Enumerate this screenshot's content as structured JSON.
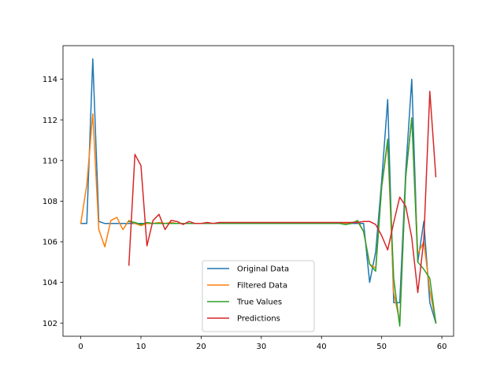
{
  "chart_data": {
    "type": "line",
    "title": "",
    "xlabel": "",
    "ylabel": "",
    "xlim": [
      -2.95,
      61.95
    ],
    "ylim": [
      101.35,
      115.65
    ],
    "xticks": [
      0,
      10,
      20,
      30,
      40,
      50,
      60
    ],
    "xtick_labels": [
      "0",
      "10",
      "20",
      "30",
      "40",
      "50",
      "60"
    ],
    "yticks": [
      102,
      104,
      106,
      108,
      110,
      112,
      114
    ],
    "ytick_labels": [
      "102",
      "104",
      "106",
      "108",
      "110",
      "112",
      "114"
    ],
    "grid": false,
    "legend_position": "lower-center",
    "series": [
      {
        "name": "Original Data",
        "color": "#1f77b4",
        "x": [
          0,
          1,
          2,
          3,
          4,
          5,
          6,
          7,
          8,
          9,
          10,
          11,
          12,
          13,
          14,
          15,
          16,
          17,
          18,
          19,
          20,
          21,
          22,
          23,
          24,
          25,
          26,
          27,
          28,
          29,
          30,
          31,
          32,
          33,
          34,
          35,
          36,
          37,
          38,
          39,
          40,
          41,
          42,
          43,
          44,
          45,
          46,
          47,
          48,
          49,
          50,
          51,
          52,
          53,
          54,
          55,
          56,
          57,
          58,
          59
        ],
        "values": [
          106.9,
          106.9,
          115.0,
          107.0,
          106.9,
          106.9,
          106.9,
          106.9,
          106.9,
          106.9,
          106.9,
          106.9,
          106.9,
          106.9,
          106.9,
          106.9,
          106.9,
          106.9,
          106.9,
          106.9,
          106.9,
          106.9,
          106.9,
          106.9,
          106.9,
          106.9,
          106.9,
          106.9,
          106.9,
          106.9,
          106.9,
          106.9,
          106.9,
          106.9,
          106.9,
          106.9,
          106.9,
          106.9,
          106.9,
          106.9,
          106.9,
          106.9,
          106.9,
          106.9,
          106.9,
          106.9,
          106.9,
          106.9,
          104.0,
          105.5,
          109.0,
          113.0,
          103.0,
          103.0,
          109.5,
          114.0,
          105.0,
          107.0,
          103.0,
          102.0
        ]
      },
      {
        "name": "Filtered Data",
        "color": "#ff7f0e",
        "x": [
          0,
          1,
          2,
          3,
          4,
          5,
          6,
          7,
          8,
          9,
          10,
          11,
          12,
          13,
          14,
          15,
          16,
          17,
          18,
          19,
          20,
          21,
          22,
          23,
          24,
          25,
          26,
          27,
          28,
          29,
          30,
          31,
          32,
          33,
          34,
          35,
          36,
          37,
          38,
          39,
          40,
          41,
          42,
          43,
          44,
          45,
          46,
          47,
          48,
          49,
          50,
          51,
          52,
          53,
          54,
          55,
          56,
          57,
          58,
          59
        ],
        "values": [
          106.9,
          108.8,
          112.3,
          106.6,
          105.75,
          107.05,
          107.2,
          106.6,
          107.05,
          106.9,
          106.8,
          106.9,
          106.9,
          106.95,
          106.9,
          106.95,
          106.9,
          106.9,
          106.9,
          106.9,
          106.9,
          106.9,
          106.9,
          106.9,
          106.9,
          106.9,
          106.9,
          106.9,
          106.9,
          106.9,
          106.9,
          106.9,
          106.9,
          106.9,
          106.9,
          106.9,
          106.9,
          106.9,
          106.9,
          106.9,
          106.9,
          106.9,
          106.9,
          106.9,
          106.9,
          106.95,
          107.0,
          106.5,
          104.9,
          104.7,
          108.7,
          110.9,
          103.5,
          102.05,
          109.2,
          112.1,
          105.4,
          106.0,
          103.6,
          102.05
        ]
      },
      {
        "name": "True Values",
        "color": "#2ca02c",
        "x": [
          8,
          9,
          10,
          11,
          12,
          13,
          14,
          15,
          16,
          17,
          18,
          19,
          20,
          21,
          22,
          23,
          24,
          25,
          26,
          27,
          28,
          29,
          30,
          31,
          32,
          33,
          34,
          35,
          36,
          37,
          38,
          39,
          40,
          41,
          42,
          43,
          44,
          45,
          46,
          47,
          48,
          49,
          50,
          51,
          52,
          53,
          54,
          55,
          56,
          57,
          58,
          59
        ],
        "values": [
          107.0,
          106.95,
          106.85,
          106.95,
          106.9,
          106.9,
          106.9,
          106.9,
          106.9,
          106.9,
          106.9,
          106.9,
          106.9,
          106.9,
          106.9,
          106.9,
          106.9,
          106.9,
          106.9,
          106.9,
          106.9,
          106.9,
          106.9,
          106.9,
          106.9,
          106.9,
          106.9,
          106.9,
          106.9,
          106.9,
          106.9,
          106.9,
          106.9,
          106.9,
          106.9,
          106.9,
          106.85,
          106.9,
          107.05,
          106.5,
          104.9,
          104.55,
          108.7,
          111.05,
          104.2,
          101.85,
          109.2,
          112.1,
          105.0,
          104.65,
          104.2,
          102.0
        ]
      },
      {
        "name": "Predictions",
        "color": "#d62728",
        "x": [
          8,
          9,
          10,
          11,
          12,
          13,
          14,
          15,
          16,
          17,
          18,
          19,
          20,
          21,
          22,
          23,
          24,
          25,
          26,
          27,
          28,
          29,
          30,
          31,
          32,
          33,
          34,
          35,
          36,
          37,
          38,
          39,
          40,
          41,
          42,
          43,
          44,
          45,
          46,
          47,
          48,
          49,
          50,
          51,
          52,
          53,
          54,
          55,
          56,
          57,
          58,
          59
        ],
        "values": [
          104.85,
          110.3,
          109.75,
          105.8,
          107.05,
          107.35,
          106.6,
          107.05,
          107.0,
          106.85,
          107.0,
          106.9,
          106.9,
          106.95,
          106.9,
          106.95,
          106.95,
          106.95,
          106.95,
          106.95,
          106.95,
          106.95,
          106.95,
          106.95,
          106.95,
          106.95,
          106.95,
          106.95,
          106.95,
          106.95,
          106.95,
          106.95,
          106.95,
          106.95,
          106.95,
          106.95,
          106.95,
          106.95,
          106.95,
          107.0,
          107.0,
          106.85,
          106.3,
          105.6,
          106.95,
          108.2,
          107.75,
          106.2,
          103.5,
          106.1,
          113.4,
          109.2
        ]
      }
    ]
  }
}
